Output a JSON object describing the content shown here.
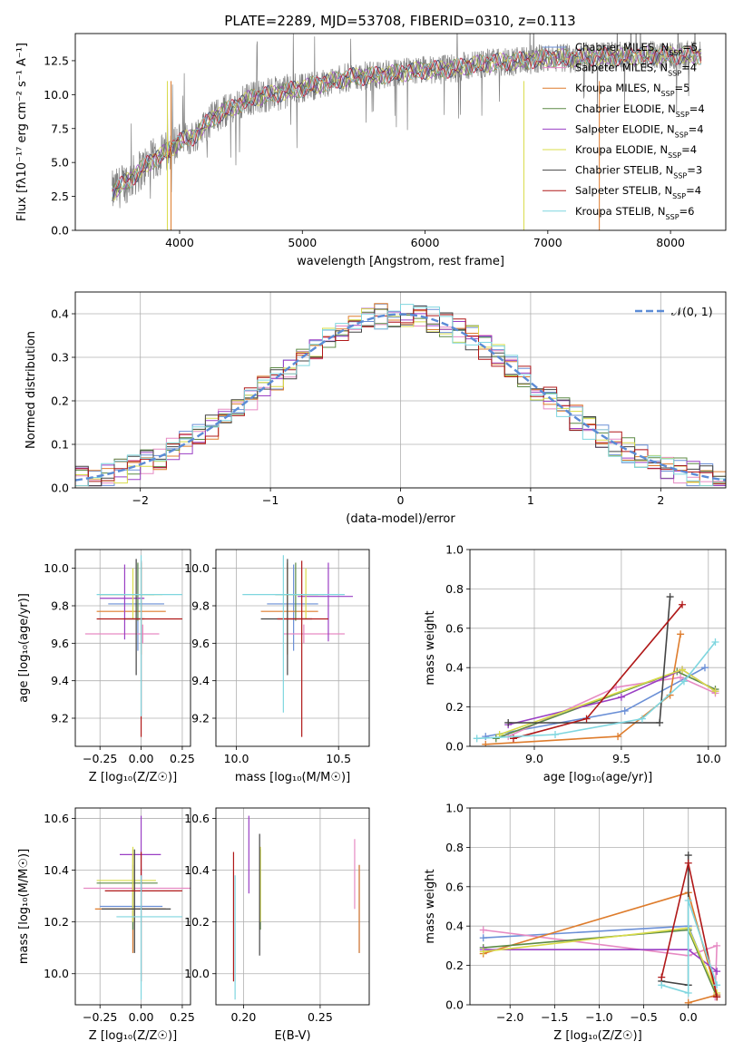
{
  "figure": {
    "title": "PLATE=2289, MJD=53708, FIBERID=0310, z=0.113"
  },
  "colors": {
    "Chabrier MILES": "#6a8fd6",
    "Salpeter MILES": "#e68ac3",
    "Kroupa MILES": "#de7c2c",
    "Chabrier ELODIE": "#5c8a46",
    "Salpeter ELODIE": "#9a3fc4",
    "Kroupa ELODIE": "#d9dc4a",
    "Chabrier STELIB": "#444444",
    "Salpeter STELIB": "#b01818",
    "Kroupa STELIB": "#7fd6df",
    "data": "#808080",
    "normal": "#5b8bd6"
  },
  "chart_data": [
    {
      "id": "spectrum",
      "type": "line",
      "title": "PLATE=2289, MJD=53708, FIBERID=0310, z=0.113",
      "xlabel": "wavelength [Angstrom, rest frame]",
      "ylabel": "Flux [fλ10⁻¹⁷ erg cm⁻² s⁻¹ A⁻¹]",
      "xlim": [
        3150,
        8450
      ],
      "ylim": [
        0,
        14.5
      ],
      "xticks": [
        4000,
        5000,
        6000,
        7000,
        8000
      ],
      "yticks": [
        0.0,
        2.5,
        5.0,
        7.5,
        10.0,
        12.5
      ],
      "grid": false,
      "legend_position": "top-right",
      "observed": {
        "x": [
          3450,
          3600,
          3700,
          3800,
          3900,
          4000,
          4100,
          4200,
          4300,
          4400,
          4600,
          4800,
          5000,
          5200,
          5400,
          5600,
          5800,
          6000,
          6200,
          6400,
          6600,
          6800,
          7000,
          7200,
          7400,
          7600,
          7800,
          8000,
          8250
        ],
        "y": [
          2.8,
          3.8,
          4.6,
          5.3,
          5.8,
          6.6,
          6.8,
          7.7,
          8.5,
          8.9,
          9.8,
          10.1,
          10.5,
          10.9,
          11.3,
          11.4,
          11.6,
          11.8,
          11.9,
          12.2,
          12.4,
          12.5,
          12.7,
          12.7,
          12.8,
          12.8,
          12.9,
          12.9,
          12.9
        ]
      },
      "series": [
        {
          "name": "Chabrier MILES",
          "n_ssp": "5"
        },
        {
          "name": "Salpeter MILES",
          "n_ssp": "4"
        },
        {
          "name": "Kroupa MILES",
          "n_ssp": "5"
        },
        {
          "name": "Chabrier ELODIE",
          "n_ssp": "4"
        },
        {
          "name": "Salpeter ELODIE",
          "n_ssp": "4"
        },
        {
          "name": "Kroupa ELODIE",
          "n_ssp": "4"
        },
        {
          "name": "Chabrier STELIB",
          "n_ssp": "3"
        },
        {
          "name": "Salpeter STELIB",
          "n_ssp": "4"
        },
        {
          "name": "Kroupa STELIB",
          "n_ssp": "6"
        }
      ]
    },
    {
      "id": "residuals",
      "type": "line",
      "xlabel": "(data-model)/error",
      "ylabel": "Normed distribution",
      "xlim": [
        -2.5,
        2.5
      ],
      "ylim": [
        0,
        0.45
      ],
      "xticks": [
        -2,
        -1,
        0,
        1,
        2
      ],
      "yticks": [
        0.0,
        0.1,
        0.2,
        0.3,
        0.4
      ],
      "grid": true,
      "legend_position": "top-right",
      "reference": {
        "name": "𝒩(0, 1)",
        "style": "dashed"
      },
      "bin_width": 0.1,
      "bin_start": -2.5
    },
    {
      "id": "age-vs-Z",
      "type": "scatter",
      "xlabel": "Z [log₁₀(Z/Z☉)]",
      "ylabel": "age  [log₁₀(age/yr)]",
      "xlim": [
        -0.4,
        0.3
      ],
      "ylim": [
        9.05,
        10.1
      ],
      "xticks": [
        -0.25,
        0.0,
        0.25
      ],
      "yticks": [
        9.2,
        9.4,
        9.6,
        9.8,
        10.0
      ],
      "grid": true,
      "points": [
        {
          "name": "Chabrier MILES",
          "x": -0.02,
          "xerr": [
            0.18,
            0.16
          ],
          "y": 9.81,
          "yerr": [
            0.25,
            0.21
          ]
        },
        {
          "name": "Salpeter MILES",
          "x": 0.01,
          "xerr": [
            0.35,
            0.1
          ],
          "y": 9.65,
          "yerr": [
            0.05,
            0.05
          ]
        },
        {
          "name": "Kroupa MILES",
          "x": 0.0,
          "xerr": [
            0.27,
            0.15
          ],
          "y": 9.77,
          "yerr": [
            0.23,
            0.26
          ]
        },
        {
          "name": "Chabrier ELODIE",
          "x": -0.02,
          "xerr": [
            0.23,
            0.1
          ],
          "y": 9.86,
          "yerr": [
            0.14,
            0.17
          ]
        },
        {
          "name": "Salpeter ELODIE",
          "x": -0.1,
          "xerr": [
            0.15,
            0.12
          ],
          "y": 9.84,
          "yerr": [
            0.22,
            0.18
          ]
        },
        {
          "name": "Kroupa ELODIE",
          "x": -0.05,
          "xerr": [
            0.19,
            0.18
          ],
          "y": 9.86,
          "yerr": [
            0.13,
            0.14
          ]
        },
        {
          "name": "Chabrier STELIB",
          "x": -0.03,
          "xerr": [
            0.07,
            0.05
          ],
          "y": 9.73,
          "yerr": [
            0.3,
            0.32
          ]
        },
        {
          "name": "Salpeter STELIB",
          "x": 0.0,
          "xerr": [
            0.27,
            0.25
          ],
          "y": 9.73,
          "yerr": [
            0.63,
            0.31
          ]
        },
        {
          "name": "Kroupa STELIB",
          "x": 0.0,
          "xerr": [
            0.27,
            0.25
          ],
          "y": 9.86,
          "yerr": [
            0.65,
            0.21
          ]
        }
      ]
    },
    {
      "id": "age-vs-mass",
      "type": "scatter",
      "xlabel": "mass [log₁₀(M/M☉)]",
      "ylabel": "",
      "xlim": [
        9.9,
        10.65
      ],
      "ylim": [
        9.05,
        10.1
      ],
      "xticks": [
        10.0,
        10.5
      ],
      "yticks": [
        9.2,
        9.4,
        9.6,
        9.8,
        10.0
      ],
      "grid": true,
      "points": [
        {
          "name": "Chabrier MILES",
          "x": 10.28,
          "xerr": [
            0.13,
            0.12
          ],
          "y": 9.81,
          "yerr": [
            0.25,
            0.21
          ]
        },
        {
          "name": "Salpeter MILES",
          "x": 10.33,
          "xerr": [
            0.1,
            0.2
          ],
          "y": 9.65,
          "yerr": [
            0.05,
            0.05
          ]
        },
        {
          "name": "Kroupa MILES",
          "x": 10.25,
          "xerr": [
            0.13,
            0.15
          ],
          "y": 9.77,
          "yerr": [
            0.23,
            0.26
          ]
        },
        {
          "name": "Chabrier ELODIE",
          "x": 10.29,
          "xerr": [
            0.1,
            0.11
          ],
          "y": 9.86,
          "yerr": [
            0.14,
            0.17
          ]
        },
        {
          "name": "Salpeter ELODIE",
          "x": 10.45,
          "xerr": [
            0.15,
            0.12
          ],
          "y": 9.85,
          "yerr": [
            0.24,
            0.18
          ]
        },
        {
          "name": "Kroupa ELODIE",
          "x": 10.34,
          "xerr": [
            0.11,
            0.09
          ],
          "y": 9.86,
          "yerr": [
            0.13,
            0.14
          ]
        },
        {
          "name": "Chabrier STELIB",
          "x": 10.25,
          "xerr": [
            0.13,
            0.12
          ],
          "y": 9.73,
          "yerr": [
            0.3,
            0.32
          ]
        },
        {
          "name": "Salpeter STELIB",
          "x": 10.32,
          "xerr": [
            0.12,
            0.13
          ],
          "y": 9.73,
          "yerr": [
            0.63,
            0.31
          ]
        },
        {
          "name": "Kroupa STELIB",
          "x": 10.23,
          "xerr": [
            0.2,
            0.3
          ],
          "y": 9.86,
          "yerr": [
            0.63,
            0.21
          ]
        }
      ]
    },
    {
      "id": "weights-vs-age",
      "type": "line",
      "xlabel": "age  [log₁₀(age/yr)]",
      "ylabel": "mass weight",
      "xlim": [
        8.63,
        10.1
      ],
      "ylim": [
        0,
        1.0
      ],
      "xticks": [
        9.0,
        9.5,
        10.0
      ],
      "yticks": [
        0.0,
        0.2,
        0.4,
        0.6,
        0.8,
        1.0
      ],
      "grid": true,
      "series": [
        {
          "name": "Chabrier MILES",
          "x": [
            8.72,
            9.52,
            9.98
          ],
          "y": [
            0.05,
            0.18,
            0.4
          ]
        },
        {
          "name": "Salpeter MILES",
          "x": [
            8.85,
            9.47,
            9.84,
            10.04
          ],
          "y": [
            0.05,
            0.3,
            0.35,
            0.27
          ]
        },
        {
          "name": "Kroupa MILES",
          "x": [
            8.72,
            9.48,
            9.78,
            9.84
          ],
          "y": [
            0.01,
            0.05,
            0.26,
            0.57
          ]
        },
        {
          "name": "Chabrier ELODIE",
          "x": [
            8.78,
            9.82,
            10.04
          ],
          "y": [
            0.04,
            0.38,
            0.29
          ]
        },
        {
          "name": "Salpeter ELODIE",
          "x": [
            8.85,
            9.5,
            9.85,
            10.04
          ],
          "y": [
            0.11,
            0.25,
            0.39,
            0.28
          ]
        },
        {
          "name": "Kroupa ELODIE",
          "x": [
            8.8,
            9.85,
            10.04
          ],
          "y": [
            0.06,
            0.39,
            0.28
          ]
        },
        {
          "name": "Chabrier STELIB",
          "x": [
            8.85,
            9.72,
            9.78
          ],
          "y": [
            0.12,
            0.12,
            0.76
          ]
        },
        {
          "name": "Salpeter STELIB",
          "x": [
            8.88,
            9.3,
            9.85
          ],
          "y": [
            0.04,
            0.14,
            0.72
          ]
        },
        {
          "name": "Kroupa STELIB",
          "x": [
            8.67,
            9.12,
            9.62,
            9.86,
            10.04
          ],
          "y": [
            0.04,
            0.06,
            0.14,
            0.33,
            0.53
          ]
        }
      ]
    },
    {
      "id": "mass-vs-Z",
      "type": "scatter",
      "xlabel": "Z [log₁₀(Z/Z☉)]",
      "ylabel": "mass [log₁₀(M/M☉)]",
      "xlim": [
        -0.4,
        0.3
      ],
      "ylim": [
        9.88,
        10.64
      ],
      "xticks": [
        -0.25,
        0.0,
        0.25
      ],
      "yticks": [
        10.0,
        10.2,
        10.4,
        10.6
      ],
      "grid": true,
      "points": [
        {
          "name": "Chabrier MILES",
          "x": -0.05,
          "xerr": [
            0.2,
            0.18
          ],
          "y": 10.26,
          "yerr": [
            0.18,
            0.16
          ]
        },
        {
          "name": "Salpeter MILES",
          "x": 0.0,
          "xerr": [
            0.35,
            0.3
          ],
          "y": 10.33,
          "yerr": [
            0.08,
            0.08
          ]
        },
        {
          "name": "Kroupa MILES",
          "x": -0.05,
          "xerr": [
            0.23,
            0.2
          ],
          "y": 10.25,
          "yerr": [
            0.17,
            0.21
          ]
        },
        {
          "name": "Chabrier ELODIE",
          "x": -0.05,
          "xerr": [
            0.22,
            0.15
          ],
          "y": 10.35,
          "yerr": [
            0.18,
            0.13
          ]
        },
        {
          "name": "Salpeter ELODIE",
          "x": 0.0,
          "xerr": [
            0.13,
            0.12
          ],
          "y": 10.46,
          "yerr": [
            0.15,
            0.15
          ]
        },
        {
          "name": "Kroupa ELODIE",
          "x": -0.05,
          "xerr": [
            0.22,
            0.14
          ],
          "y": 10.36,
          "yerr": [
            0.16,
            0.13
          ]
        },
        {
          "name": "Chabrier STELIB",
          "x": -0.04,
          "xerr": [
            0.2,
            0.22
          ],
          "y": 10.25,
          "yerr": [
            0.17,
            0.23
          ]
        },
        {
          "name": "Salpeter STELIB",
          "x": 0.0,
          "xerr": [
            0.22,
            0.25
          ],
          "y": 10.32,
          "yerr": [
            0.35,
            0.15
          ]
        },
        {
          "name": "Kroupa STELIB",
          "x": 0.0,
          "xerr": [
            0.15,
            0.25
          ],
          "y": 10.22,
          "yerr": [
            0.32,
            0.16
          ]
        }
      ]
    },
    {
      "id": "mass-vs-ebv",
      "type": "scatter",
      "xlabel": "E(B-V)",
      "ylabel": "",
      "xlim": [
        0.182,
        0.282
      ],
      "ylim": [
        9.88,
        10.64
      ],
      "xticks": [
        0.2,
        0.25
      ],
      "yticks": [
        10.0,
        10.2,
        10.4,
        10.6
      ],
      "grid": true,
      "points": [
        {
          "name": "Chabrier MILES",
          "x": 0.2755,
          "y": 10.26,
          "yerr": [
            0.18,
            0.16
          ]
        },
        {
          "name": "Salpeter MILES",
          "x": 0.2725,
          "y": 10.33,
          "yerr": [
            0.08,
            0.19
          ]
        },
        {
          "name": "Kroupa MILES",
          "x": 0.2755,
          "y": 10.25,
          "yerr": [
            0.17,
            0.17
          ]
        },
        {
          "name": "Chabrier ELODIE",
          "x": 0.211,
          "y": 10.35,
          "yerr": [
            0.18,
            0.13
          ]
        },
        {
          "name": "Salpeter ELODIE",
          "x": 0.2035,
          "y": 10.46,
          "yerr": [
            0.15,
            0.15
          ]
        },
        {
          "name": "Kroupa ELODIE",
          "x": 0.211,
          "y": 10.36,
          "yerr": [
            0.16,
            0.13
          ]
        },
        {
          "name": "Chabrier STELIB",
          "x": 0.2105,
          "y": 10.25,
          "yerr": [
            0.18,
            0.29
          ]
        },
        {
          "name": "Salpeter STELIB",
          "x": 0.1935,
          "y": 10.32,
          "yerr": [
            0.35,
            0.15
          ]
        },
        {
          "name": "Kroupa STELIB",
          "x": 0.1945,
          "y": 10.22,
          "yerr": [
            0.32,
            0.16
          ]
        }
      ]
    },
    {
      "id": "weights-vs-Z",
      "type": "line",
      "xlabel": "Z [log₁₀(Z/Z☉)]",
      "ylabel": "mass weight",
      "xlim": [
        -2.45,
        0.42
      ],
      "ylim": [
        0,
        1.0
      ],
      "xticks": [
        -2.0,
        -1.5,
        -1.0,
        -0.5,
        0.0
      ],
      "yticks": [
        0.0,
        0.2,
        0.4,
        0.6,
        0.8,
        1.0
      ],
      "grid": true,
      "series": [
        {
          "name": "Chabrier MILES",
          "x": [
            -2.3,
            0.0,
            0.32
          ],
          "y": [
            0.34,
            0.4,
            0.05
          ]
        },
        {
          "name": "Salpeter MILES",
          "x": [
            -2.3,
            0.0,
            0.32,
            0.3
          ],
          "y": [
            0.38,
            0.25,
            0.3,
            0.04
          ]
        },
        {
          "name": "Kroupa MILES",
          "x": [
            -2.3,
            0.0,
            0.32,
            0.0
          ],
          "y": [
            0.26,
            0.57,
            0.05,
            0.01
          ]
        },
        {
          "name": "Chabrier ELODIE",
          "x": [
            -2.3,
            0.0,
            0.32
          ],
          "y": [
            0.29,
            0.38,
            0.04
          ]
        },
        {
          "name": "Salpeter ELODIE",
          "x": [
            -2.3,
            0.0,
            0.32
          ],
          "y": [
            0.28,
            0.28,
            0.17
          ]
        },
        {
          "name": "Kroupa ELODIE",
          "x": [
            -2.3,
            0.0,
            0.32
          ],
          "y": [
            0.27,
            0.39,
            0.06
          ]
        },
        {
          "name": "Chabrier STELIB",
          "x": [
            -0.3,
            0.0,
            0.0
          ],
          "y": [
            0.12,
            0.1,
            0.76
          ]
        },
        {
          "name": "Salpeter STELIB",
          "x": [
            -0.3,
            0.0,
            0.32
          ],
          "y": [
            0.14,
            0.72,
            0.04
          ]
        },
        {
          "name": "Kroupa STELIB",
          "x": [
            -0.3,
            0.0,
            0.0,
            0.32
          ],
          "y": [
            0.1,
            0.06,
            0.53,
            0.1
          ]
        }
      ]
    }
  ]
}
